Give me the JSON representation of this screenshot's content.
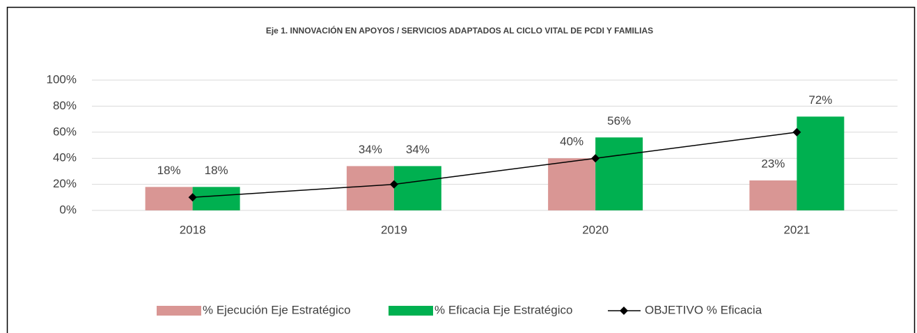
{
  "chart_data": {
    "type": "bar",
    "title": "Eje 1. INNOVACIÓN EN APOYOS / SERVICIOS ADAPTADOS AL CICLO VITAL DE PCDI Y FAMILIAS",
    "categories": [
      "2018",
      "2019",
      "2020",
      "2021"
    ],
    "series": [
      {
        "name": "% Ejecución Eje Estratégico",
        "color": "#d99694",
        "values": [
          18,
          34,
          40,
          23
        ],
        "value_labels": [
          "18%",
          "34%",
          "40%",
          "23%"
        ]
      },
      {
        "name": "% Eficacia Eje Estratégico",
        "color": "#00b050",
        "values": [
          18,
          34,
          56,
          72
        ],
        "value_labels": [
          "18%",
          "34%",
          "56%",
          "72%"
        ]
      },
      {
        "name": "OBJETIVO % Eficacia",
        "color": "#000000",
        "type": "line",
        "values": [
          10,
          20,
          40,
          60
        ]
      }
    ],
    "ylim": [
      0,
      100
    ],
    "yticks": [
      {
        "value": 0,
        "label": "0%"
      },
      {
        "value": 20,
        "label": "20%"
      },
      {
        "value": 40,
        "label": "40%"
      },
      {
        "value": 60,
        "label": "60%"
      },
      {
        "value": 80,
        "label": "80%"
      },
      {
        "value": 100,
        "label": "100%"
      }
    ],
    "grid": true,
    "legend": "bottom"
  }
}
